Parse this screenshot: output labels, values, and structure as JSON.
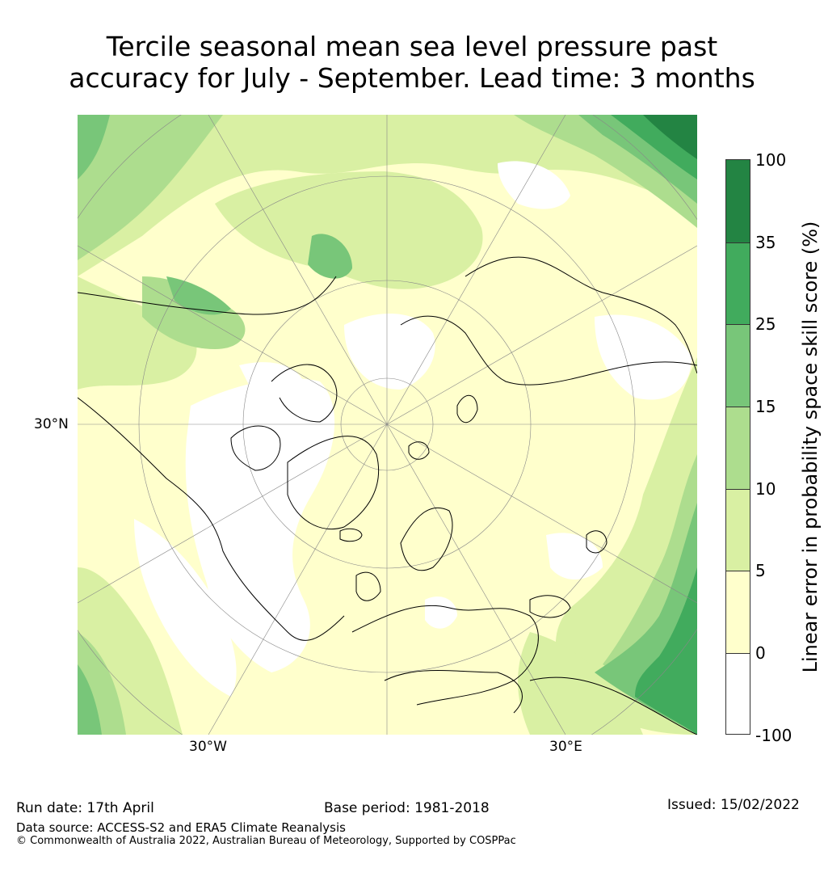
{
  "title_line1": "Tercile seasonal mean sea level pressure past",
  "title_line2": "accuracy for July - September. Lead time: 3 months",
  "map": {
    "projection": "north-polar-stereographic",
    "lat_label": "30°N",
    "lon_labels": [
      "30°W",
      "30°E"
    ],
    "colors": {
      "white": "#ffffff",
      "c0_5": "#ffffcc",
      "c5_10": "#d9f0a3",
      "c10_15": "#addd8e",
      "c15_25": "#78c679",
      "c25_35": "#41ab5d",
      "c35_100": "#238443",
      "coast": "#000000",
      "grid": "#888888"
    }
  },
  "colorbar": {
    "label": "Linear error in probability space skill score (%)",
    "ticks": [
      "100",
      "35",
      "25",
      "15",
      "10",
      "5",
      "0",
      "-100"
    ],
    "levels": [
      {
        "from": "-100",
        "to": "0",
        "color": "#ffffff"
      },
      {
        "from": "0",
        "to": "5",
        "color": "#ffffcc"
      },
      {
        "from": "5",
        "to": "10",
        "color": "#d9f0a3"
      },
      {
        "from": "10",
        "to": "15",
        "color": "#addd8e"
      },
      {
        "from": "15",
        "to": "25",
        "color": "#78c679"
      },
      {
        "from": "25",
        "to": "35",
        "color": "#41ab5d"
      },
      {
        "from": "35",
        "to": "100",
        "color": "#238443"
      }
    ]
  },
  "footer": {
    "run_date": "Run date: 17th April",
    "base_period": "Base period: 1981-2018",
    "issued": "Issued: 15/02/2022",
    "data_source": "Data source: ACCESS-S2 and ERA5 Climate Reanalysis",
    "copyright": "© Commonwealth of Australia 2022, Australian Bureau of Meteorology, Supported by COSPPac"
  }
}
